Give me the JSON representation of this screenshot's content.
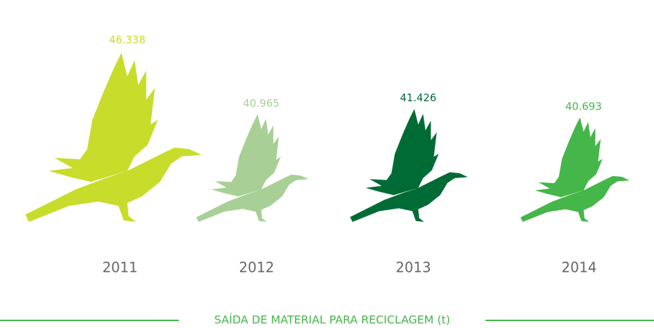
{
  "chart_data": {
    "type": "pictogram",
    "title": "SAÍDA DE MATERIAL PARA RECICLAGEM (t)",
    "categories": [
      "2011",
      "2012",
      "2013",
      "2014"
    ],
    "values": [
      46338,
      40965,
      41426,
      40693
    ],
    "value_labels": [
      "46.338",
      "40.965",
      "41.426",
      "40.693"
    ],
    "colors": [
      "#c8dc2c",
      "#a8d096",
      "#006b35",
      "#45b649"
    ]
  }
}
